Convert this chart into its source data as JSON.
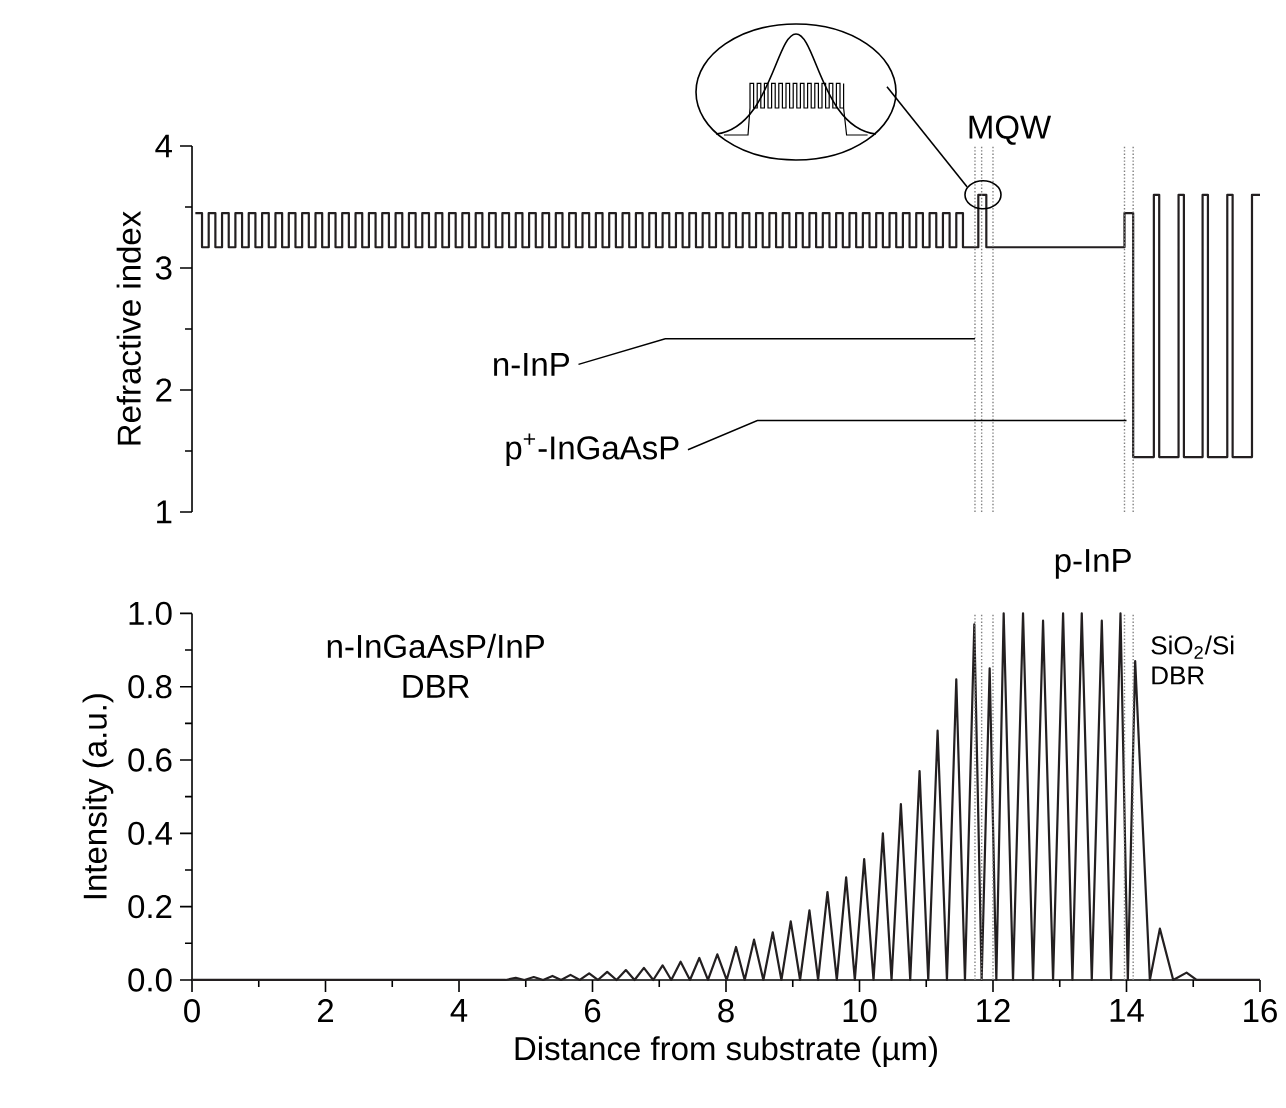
{
  "chart_data": [
    {
      "type": "step",
      "ylabel": "Refractive index",
      "color": "#231f20",
      "xlim": [
        0,
        16
      ],
      "ylim": [
        1,
        4
      ],
      "tick_labels": "y",
      "yticks": [
        1,
        {
          "value": 1.5,
          "label": null
        },
        2,
        {
          "value": 2.5,
          "label": null
        },
        3,
        {
          "value": 3.5,
          "label": null
        },
        4
      ],
      "x": [
        0.05,
        0.15,
        0.25,
        0.35,
        0.45,
        0.55,
        0.65,
        0.75,
        0.85,
        0.95,
        1.05,
        1.15,
        1.25,
        1.35,
        1.45,
        1.55,
        1.65,
        1.75,
        1.85,
        1.95,
        2.05,
        2.15,
        2.25,
        2.35,
        2.45,
        2.55,
        2.65,
        2.75,
        2.85,
        2.95,
        3.05,
        3.15,
        3.25,
        3.35,
        3.45,
        3.55,
        3.65,
        3.75,
        3.85,
        3.95,
        4.05,
        4.15,
        4.25,
        4.35,
        4.45,
        4.55,
        4.65,
        4.75,
        4.85,
        4.95,
        5.05,
        5.15,
        5.25,
        5.35,
        5.45,
        5.55,
        5.65,
        5.75,
        5.85,
        5.95,
        6.05,
        6.15,
        6.25,
        6.35,
        6.45,
        6.55,
        6.65,
        6.75,
        6.85,
        6.95,
        7.05,
        7.15,
        7.25,
        7.35,
        7.45,
        7.55,
        7.65,
        7.75,
        7.85,
        7.95,
        8.05,
        8.15,
        8.25,
        8.35,
        8.45,
        8.55,
        8.65,
        8.75,
        8.85,
        8.95,
        9.05,
        9.15,
        9.25,
        9.35,
        9.45,
        9.55,
        9.65,
        9.75,
        9.85,
        9.95,
        10.05,
        10.15,
        10.25,
        10.35,
        10.45,
        10.55,
        10.65,
        10.75,
        10.85,
        10.95,
        11.05,
        11.15,
        11.25,
        11.35,
        11.45,
        11.55,
        11.78,
        11.9,
        13.97,
        14.1,
        14.41,
        14.49,
        14.78,
        14.86,
        15.14,
        15.22,
        15.51,
        15.59,
        15.88,
        16
      ],
      "values": [
        3.45,
        3.17,
        3.45,
        3.17,
        3.45,
        3.17,
        3.45,
        3.17,
        3.45,
        3.17,
        3.45,
        3.17,
        3.45,
        3.17,
        3.45,
        3.17,
        3.45,
        3.17,
        3.45,
        3.17,
        3.45,
        3.17,
        3.45,
        3.17,
        3.45,
        3.17,
        3.45,
        3.17,
        3.45,
        3.17,
        3.45,
        3.17,
        3.45,
        3.17,
        3.45,
        3.17,
        3.45,
        3.17,
        3.45,
        3.17,
        3.45,
        3.17,
        3.45,
        3.17,
        3.45,
        3.17,
        3.45,
        3.17,
        3.45,
        3.17,
        3.45,
        3.17,
        3.45,
        3.17,
        3.45,
        3.17,
        3.45,
        3.17,
        3.45,
        3.17,
        3.45,
        3.17,
        3.45,
        3.17,
        3.45,
        3.17,
        3.45,
        3.17,
        3.45,
        3.17,
        3.45,
        3.17,
        3.45,
        3.17,
        3.45,
        3.17,
        3.45,
        3.17,
        3.45,
        3.17,
        3.45,
        3.17,
        3.45,
        3.17,
        3.45,
        3.17,
        3.45,
        3.17,
        3.45,
        3.17,
        3.45,
        3.17,
        3.45,
        3.17,
        3.45,
        3.17,
        3.45,
        3.17,
        3.45,
        3.17,
        3.45,
        3.17,
        3.45,
        3.17,
        3.45,
        3.17,
        3.45,
        3.17,
        3.45,
        3.17,
        3.45,
        3.17,
        3.45,
        3.17,
        3.45,
        3.17,
        3.6,
        3.17,
        3.45,
        1.45,
        3.6,
        1.45,
        3.6,
        1.45,
        3.6,
        1.45,
        3.6,
        1.45,
        3.6,
        3.6
      ],
      "annotations": [
        {
          "text": "MQW",
          "x": 11.85,
          "y": 3.6
        },
        {
          "text": "n-InP",
          "x": 11.73,
          "y": 2.42
        },
        {
          "text": "p$^{+}$-InGaAsP",
          "x": 14.0,
          "y": 1.75
        }
      ],
      "ref_lines": [
        {
          "axis": "x",
          "value": 11.73,
          "line_style": "dotted",
          "color": "#808080"
        },
        {
          "axis": "x",
          "value": 11.83,
          "line_style": "dotted",
          "color": "#808080"
        },
        {
          "axis": "x",
          "value": 12.0,
          "line_style": "dotted",
          "color": "#808080"
        },
        {
          "axis": "x",
          "value": 13.97,
          "line_style": "dotted",
          "color": "#808080"
        },
        {
          "axis": "x",
          "value": 14.1,
          "line_style": "dotted",
          "color": "#808080"
        }
      ]
    },
    {
      "type": "line",
      "xlabel": "Distance from substrate (µm)",
      "ylabel": "Intensity (a.u.)",
      "color": "#231f20",
      "xlim": [
        0,
        16
      ],
      "ylim": [
        0,
        1
      ],
      "xticks": [
        0,
        {
          "value": 1,
          "label": null
        },
        2,
        {
          "value": 3,
          "label": null
        },
        4,
        {
          "value": 5,
          "label": null
        },
        6,
        {
          "value": 7,
          "label": null
        },
        8,
        {
          "value": 9,
          "label": null
        },
        10,
        {
          "value": 11,
          "label": null
        },
        12,
        {
          "value": 13,
          "label": null
        },
        14,
        {
          "value": 15,
          "label": null
        },
        16
      ],
      "yticks": [
        {
          "value": 0,
          "label": "0.0"
        },
        {
          "value": 0.1,
          "label": null
        },
        {
          "value": 0.2,
          "label": "0.2"
        },
        {
          "value": 0.3,
          "label": null
        },
        {
          "value": 0.4,
          "label": "0.4"
        },
        {
          "value": 0.5,
          "label": null
        },
        {
          "value": 0.6,
          "label": "0.6"
        },
        {
          "value": 0.7,
          "label": null
        },
        {
          "value": 0.8,
          "label": "0.8"
        },
        {
          "value": 0.9,
          "label": null
        },
        {
          "value": 1,
          "label": "1.0"
        }
      ],
      "x": [
        0,
        4.7,
        4.85,
        4.98,
        5.12,
        5.26,
        5.4,
        5.53,
        5.67,
        5.81,
        5.95,
        6.08,
        6.22,
        6.36,
        6.5,
        6.63,
        6.77,
        6.91,
        7.05,
        7.18,
        7.32,
        7.46,
        7.6,
        7.73,
        7.87,
        8.01,
        8.15,
        8.28,
        8.42,
        8.56,
        8.7,
        8.83,
        8.97,
        9.11,
        9.25,
        9.38,
        9.52,
        9.66,
        9.8,
        9.93,
        10.07,
        10.21,
        10.35,
        10.48,
        10.62,
        10.76,
        10.9,
        11.03,
        11.17,
        11.31,
        11.45,
        11.58,
        11.72,
        11.83,
        11.95,
        12.05,
        12.16,
        12.3,
        12.45,
        12.6,
        12.75,
        12.9,
        13.05,
        13.19,
        13.33,
        13.48,
        13.63,
        13.77,
        13.91,
        14.02,
        14.13,
        14.35,
        14.5,
        14.7,
        14.9,
        15.05,
        16
      ],
      "values": [
        0,
        0,
        0.006,
        0,
        0.008,
        0,
        0.011,
        0,
        0.014,
        0,
        0.018,
        0,
        0.022,
        0,
        0.027,
        0,
        0.033,
        0,
        0.04,
        0,
        0.05,
        0,
        0.06,
        0,
        0.07,
        0,
        0.09,
        0,
        0.11,
        0,
        0.13,
        0,
        0.16,
        0,
        0.19,
        0,
        0.24,
        0,
        0.28,
        0,
        0.33,
        0,
        0.4,
        0,
        0.48,
        0,
        0.57,
        0,
        0.68,
        0,
        0.82,
        0,
        0.97,
        0,
        0.85,
        0,
        1.0,
        0,
        1.0,
        0,
        0.98,
        0,
        1.0,
        0,
        1.0,
        0,
        0.98,
        0,
        1.0,
        0,
        0.87,
        0,
        0.14,
        0,
        0.02,
        0,
        0
      ],
      "annotations": [
        "p-InP",
        "n-InGaAsP/InP DBR",
        "SiO$_{2}$/Si DBR"
      ],
      "ref_lines": [
        {
          "axis": "x",
          "value": 11.73,
          "line_style": "dotted",
          "color": "#808080"
        },
        {
          "axis": "x",
          "value": 11.83,
          "line_style": "dotted",
          "color": "#808080"
        },
        {
          "axis": "x",
          "value": 12.0,
          "line_style": "dotted",
          "color": "#808080"
        },
        {
          "axis": "x",
          "value": 13.97,
          "line_style": "dotted",
          "color": "#808080"
        },
        {
          "axis": "x",
          "value": 14.1,
          "line_style": "dotted",
          "color": "#808080"
        }
      ]
    }
  ]
}
